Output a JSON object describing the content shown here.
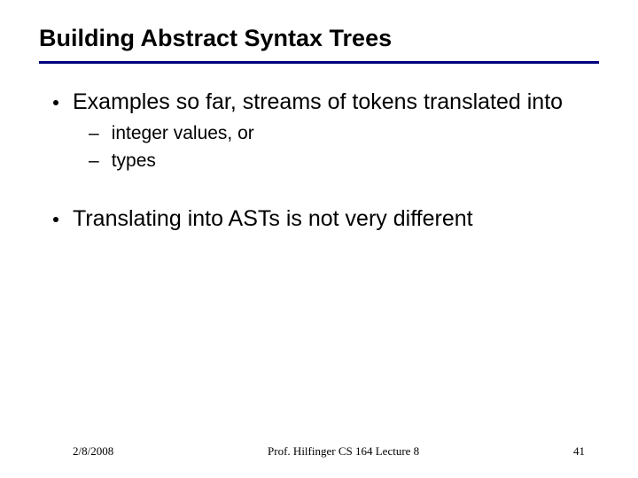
{
  "colors": {
    "rule": "#000080",
    "text": "#000000",
    "background": "#ffffff"
  },
  "typography": {
    "title_fontsize": 27,
    "body_fontsize": 25,
    "sub_fontsize": 21,
    "footer_fontsize": 13,
    "title_weight": "bold"
  },
  "title": "Building Abstract Syntax Trees",
  "bullets": {
    "b1": "Examples so far, streams of tokens translated into",
    "b1_sub1": "integer values, or",
    "b1_sub2": "types",
    "b2": "Translating into ASTs is not very different"
  },
  "footer": {
    "date": "2/8/2008",
    "center": "Prof. Hilfinger CS 164 Lecture 8",
    "pagenum": "41"
  }
}
